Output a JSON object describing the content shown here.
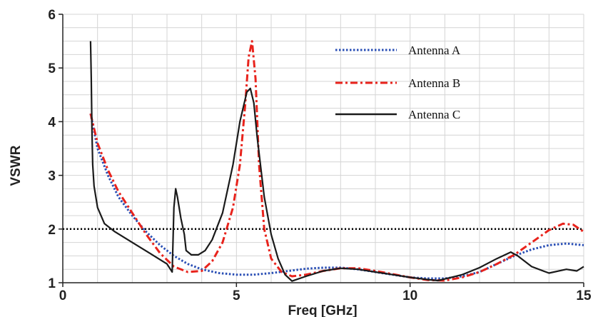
{
  "chart_data": {
    "type": "line",
    "title": "",
    "xlabel": "Freq [GHz]",
    "ylabel": "VSWR",
    "xlim": [
      0,
      15
    ],
    "ylim": [
      1,
      6
    ],
    "x_ticks": [
      0,
      5,
      10,
      15
    ],
    "y_ticks": [
      1,
      2,
      3,
      4,
      5,
      6
    ],
    "grid": true,
    "legend_position": "top-right",
    "reference_line": {
      "y": 2,
      "style": "dotted",
      "color": "#000000"
    },
    "series": [
      {
        "name": "Antenna A",
        "color": "#2a4fb5",
        "style": "dotted",
        "x": [
          0.8,
          1.0,
          1.3,
          1.6,
          2.0,
          2.4,
          2.8,
          3.2,
          3.6,
          4.0,
          4.5,
          5.0,
          5.5,
          6.0,
          6.5,
          7.0,
          7.5,
          8.0,
          8.5,
          9.0,
          9.5,
          10.0,
          10.5,
          11.0,
          11.5,
          12.0,
          12.5,
          13.0,
          13.5,
          14.0,
          14.5,
          15.0
        ],
        "y": [
          4.15,
          3.5,
          3.0,
          2.6,
          2.25,
          1.95,
          1.7,
          1.5,
          1.35,
          1.25,
          1.18,
          1.15,
          1.15,
          1.18,
          1.22,
          1.26,
          1.28,
          1.28,
          1.25,
          1.2,
          1.15,
          1.1,
          1.08,
          1.08,
          1.12,
          1.2,
          1.35,
          1.5,
          1.62,
          1.7,
          1.73,
          1.7
        ]
      },
      {
        "name": "Antenna B",
        "color": "#e8231c",
        "style": "dash-dot",
        "x": [
          0.8,
          1.0,
          1.3,
          1.6,
          2.0,
          2.4,
          2.8,
          3.2,
          3.6,
          4.0,
          4.3,
          4.6,
          4.9,
          5.1,
          5.25,
          5.35,
          5.45,
          5.55,
          5.65,
          5.8,
          6.0,
          6.3,
          6.6,
          7.0,
          7.5,
          8.0,
          8.5,
          9.0,
          9.5,
          10.0,
          10.5,
          11.0,
          11.5,
          12.0,
          12.5,
          13.0,
          13.5,
          14.0,
          14.4,
          14.7,
          15.0
        ],
        "y": [
          4.15,
          3.6,
          3.1,
          2.7,
          2.3,
          1.9,
          1.55,
          1.3,
          1.2,
          1.22,
          1.4,
          1.75,
          2.4,
          3.2,
          4.3,
          5.2,
          5.5,
          4.8,
          3.2,
          2.0,
          1.45,
          1.2,
          1.12,
          1.15,
          1.22,
          1.27,
          1.27,
          1.22,
          1.16,
          1.1,
          1.05,
          1.04,
          1.1,
          1.2,
          1.35,
          1.52,
          1.75,
          1.98,
          2.1,
          2.08,
          1.95
        ]
      },
      {
        "name": "Antenna C",
        "color": "#1a1a1a",
        "style": "solid",
        "x": [
          0.8,
          0.82,
          0.84,
          0.86,
          0.9,
          1.0,
          1.2,
          1.5,
          2.0,
          2.5,
          3.0,
          3.15,
          3.2,
          3.25,
          3.3,
          3.4,
          3.5,
          3.55,
          3.7,
          3.9,
          4.1,
          4.3,
          4.6,
          4.9,
          5.1,
          5.3,
          5.4,
          5.5,
          5.6,
          5.8,
          6.0,
          6.2,
          6.4,
          6.6,
          7.0,
          7.5,
          8.0,
          8.5,
          9.0,
          9.5,
          10.0,
          10.5,
          10.8,
          11.0,
          11.5,
          12.0,
          12.5,
          12.9,
          13.1,
          13.5,
          14.0,
          14.5,
          14.8,
          15.0
        ],
        "y": [
          5.5,
          4.8,
          3.8,
          3.2,
          2.8,
          2.4,
          2.1,
          1.95,
          1.75,
          1.55,
          1.35,
          1.2,
          2.4,
          2.75,
          2.6,
          2.2,
          1.9,
          1.6,
          1.52,
          1.52,
          1.6,
          1.8,
          2.3,
          3.2,
          4.0,
          4.55,
          4.62,
          4.35,
          3.7,
          2.6,
          1.9,
          1.45,
          1.15,
          1.03,
          1.12,
          1.22,
          1.27,
          1.25,
          1.2,
          1.15,
          1.1,
          1.06,
          1.04,
          1.07,
          1.15,
          1.28,
          1.45,
          1.57,
          1.5,
          1.3,
          1.18,
          1.25,
          1.22,
          1.3
        ]
      }
    ]
  }
}
